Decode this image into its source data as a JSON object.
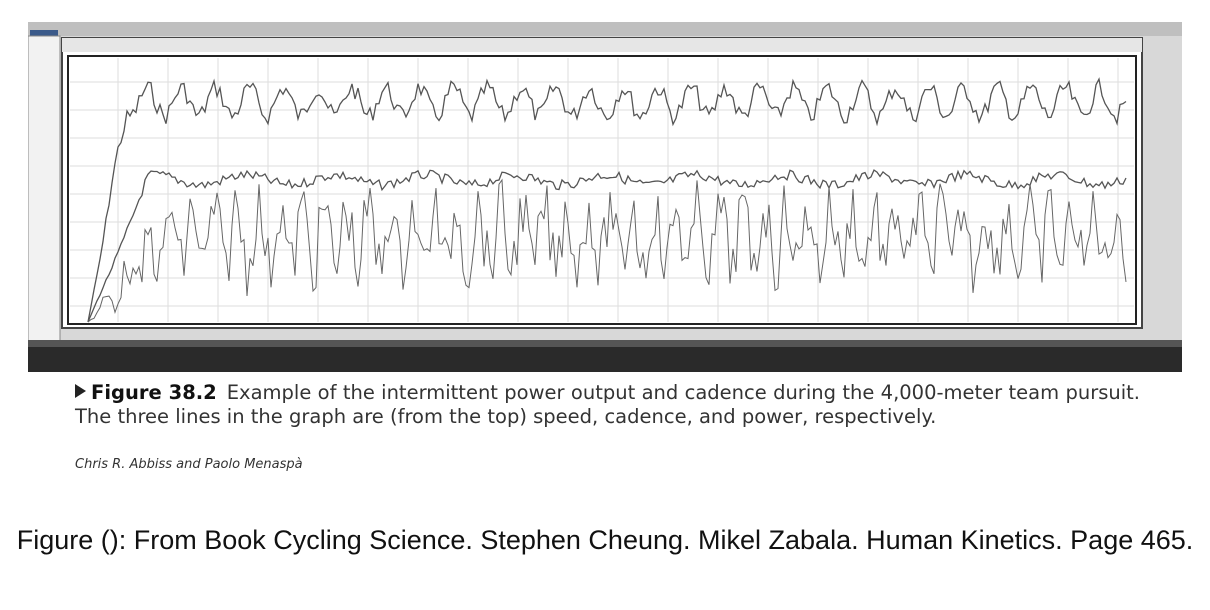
{
  "figure": {
    "label": "Figure 38.2",
    "caption": "Example of the intermittent power output and cadence during the 4,000-meter team pursuit. The three lines in the graph are (from the top) speed, cadence, and power, respectively.",
    "credit": "Chris R. Abbiss and Paolo Menaspà"
  },
  "source_note": "Figure (): From Book Cycling Science. Stephen Cheung. Mikel Zabala. Human Kinetics. Page 465."
}
